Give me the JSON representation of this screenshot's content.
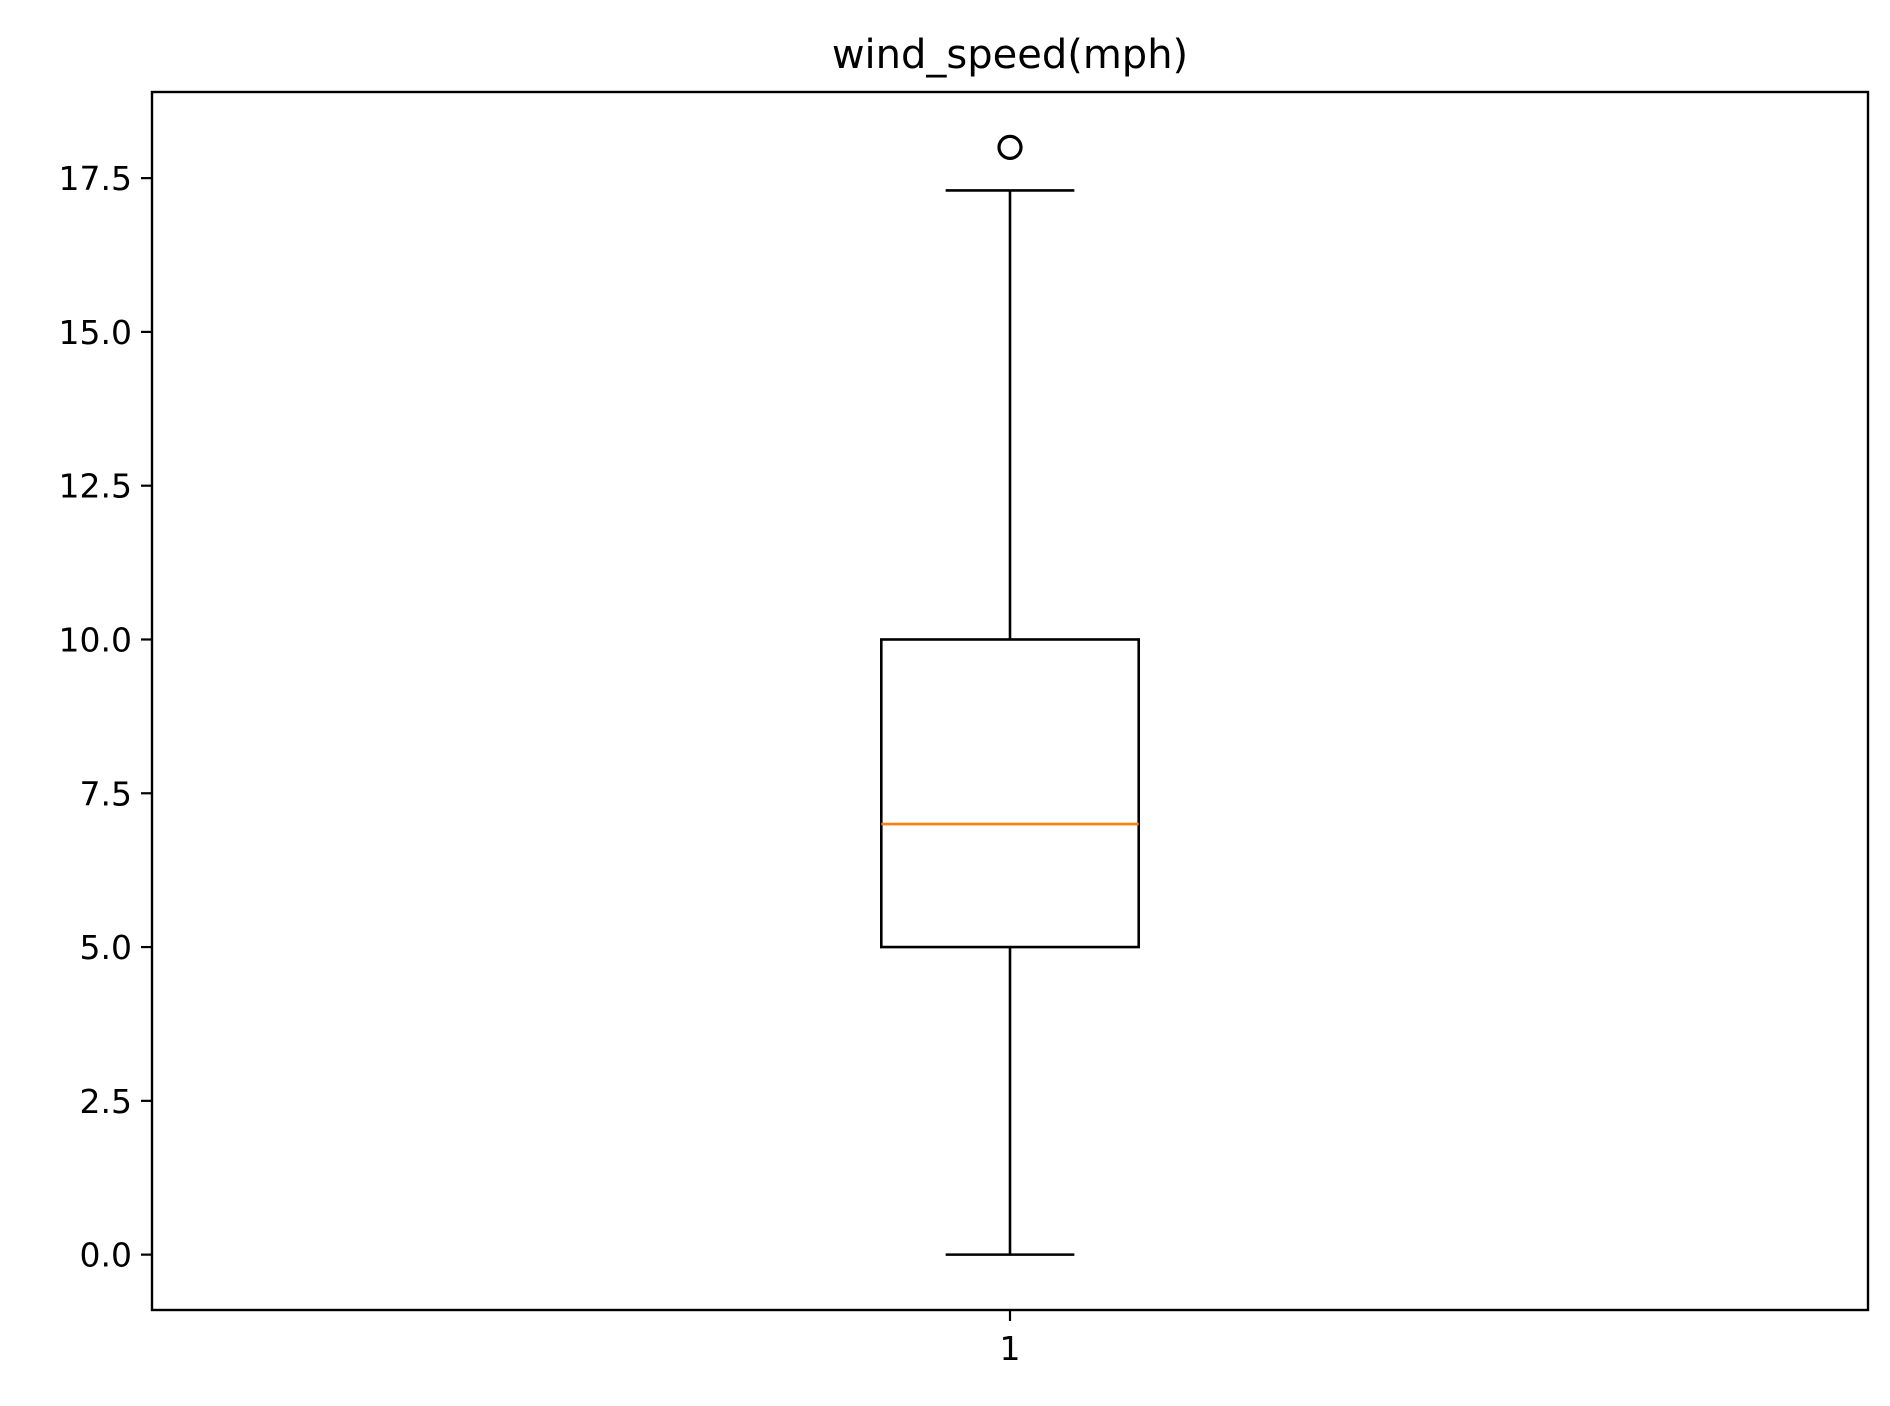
{
  "chart_data": {
    "type": "box",
    "title": "wind_speed(mph)",
    "xlabel": "",
    "ylabel": "",
    "categories": [
      "1"
    ],
    "boxes": [
      {
        "label": "1",
        "whisker_low": 0.0,
        "q1": 5.0,
        "median": 7.0,
        "q3": 10.0,
        "whisker_high": 17.3,
        "outliers": [
          18.0
        ]
      }
    ],
    "ylim": [
      -0.9,
      18.9
    ],
    "yticks": [
      0.0,
      2.5,
      5.0,
      7.5,
      10.0,
      12.5,
      15.0,
      17.5
    ],
    "ytick_labels": [
      "0.0",
      "2.5",
      "5.0",
      "7.5",
      "10.0",
      "12.5",
      "15.0",
      "17.5"
    ],
    "grid": false,
    "colors": {
      "box": "#000000",
      "median": "#ff7f0e",
      "outlier": "#000000",
      "axes": "#000000",
      "background": "#ffffff"
    }
  }
}
